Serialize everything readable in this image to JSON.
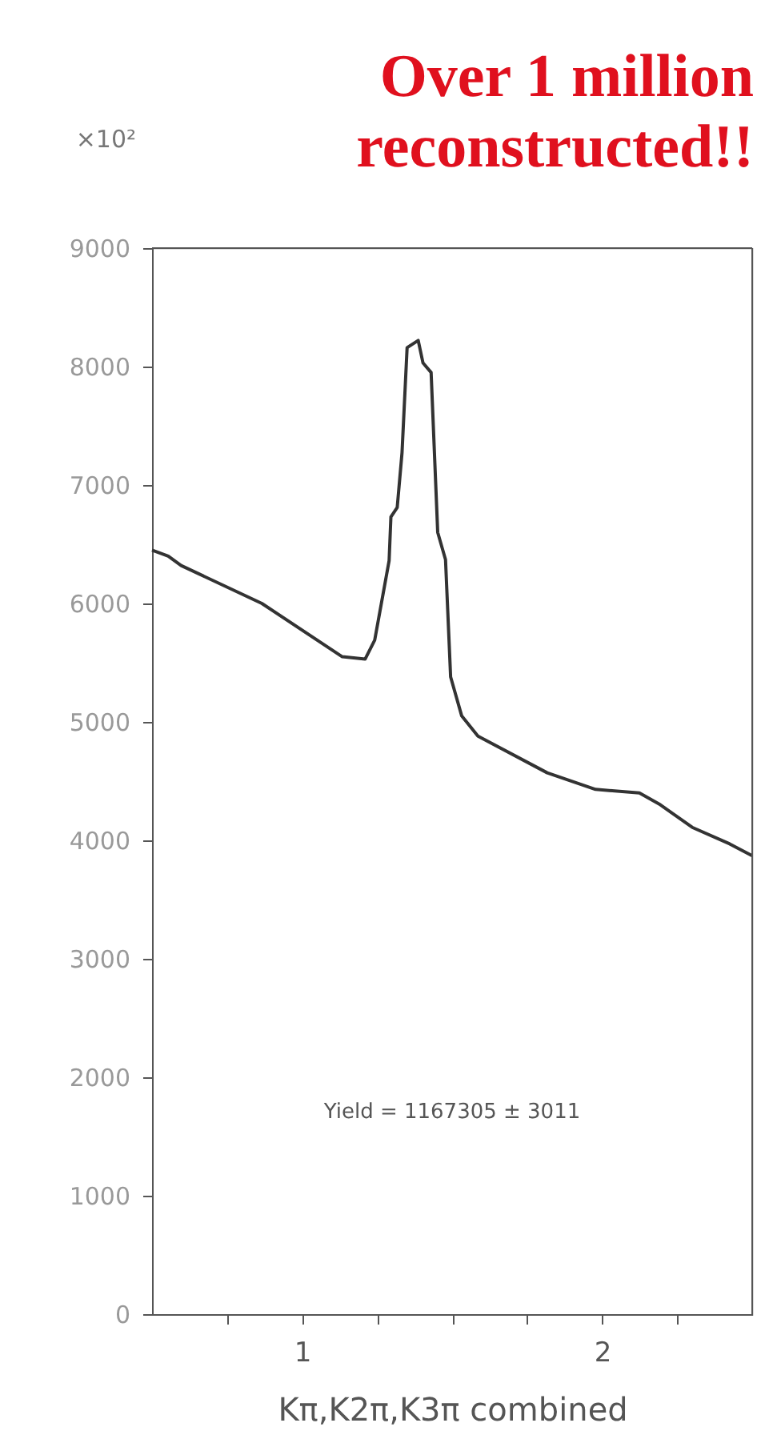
{
  "chart_data": {
    "type": "line",
    "title": [
      "Over 1 million",
      "reconstructed!!"
    ],
    "xlabel": "Kπ,K2π,K3π combined",
    "annotations": [
      "×10²",
      "Yield = 1167305 ± 3011"
    ],
    "x": [
      0.5,
      0.554,
      0.597,
      0.866,
      1.134,
      1.21,
      1.242,
      1.29,
      1.296,
      1.317,
      1.333,
      1.35,
      1.387,
      1.403,
      1.43,
      1.452,
      1.478,
      1.495,
      1.532,
      1.586,
      1.817,
      1.978,
      2.124,
      2.194,
      2.3,
      2.425,
      2.5
    ],
    "series": [
      {
        "color": "#333333",
        "values": [
          6450,
          6400,
          6320,
          6000,
          5550,
          5530,
          5690,
          6360,
          6730,
          6810,
          7270,
          8160,
          8220,
          8030,
          7950,
          6600,
          6370,
          5380,
          5050,
          4880,
          4570,
          4430,
          4400,
          4300,
          4110,
          3970,
          3870
        ]
      }
    ],
    "xlim": [
      0.5,
      2.5
    ],
    "ylim": [
      0,
      9000
    ],
    "xticks": [
      {
        "value": 0.75,
        "label": null
      },
      1,
      {
        "value": 1.25,
        "label": null
      },
      {
        "value": 1.5,
        "label": null
      },
      {
        "value": 1.75,
        "label": null
      },
      2,
      {
        "value": 2.25,
        "label": null
      }
    ],
    "yticks": [
      0,
      1000,
      2000,
      3000,
      4000,
      5000,
      6000,
      7000,
      8000,
      9000
    ],
    "grid": false,
    "marker": "none",
    "line_style": "solid"
  }
}
